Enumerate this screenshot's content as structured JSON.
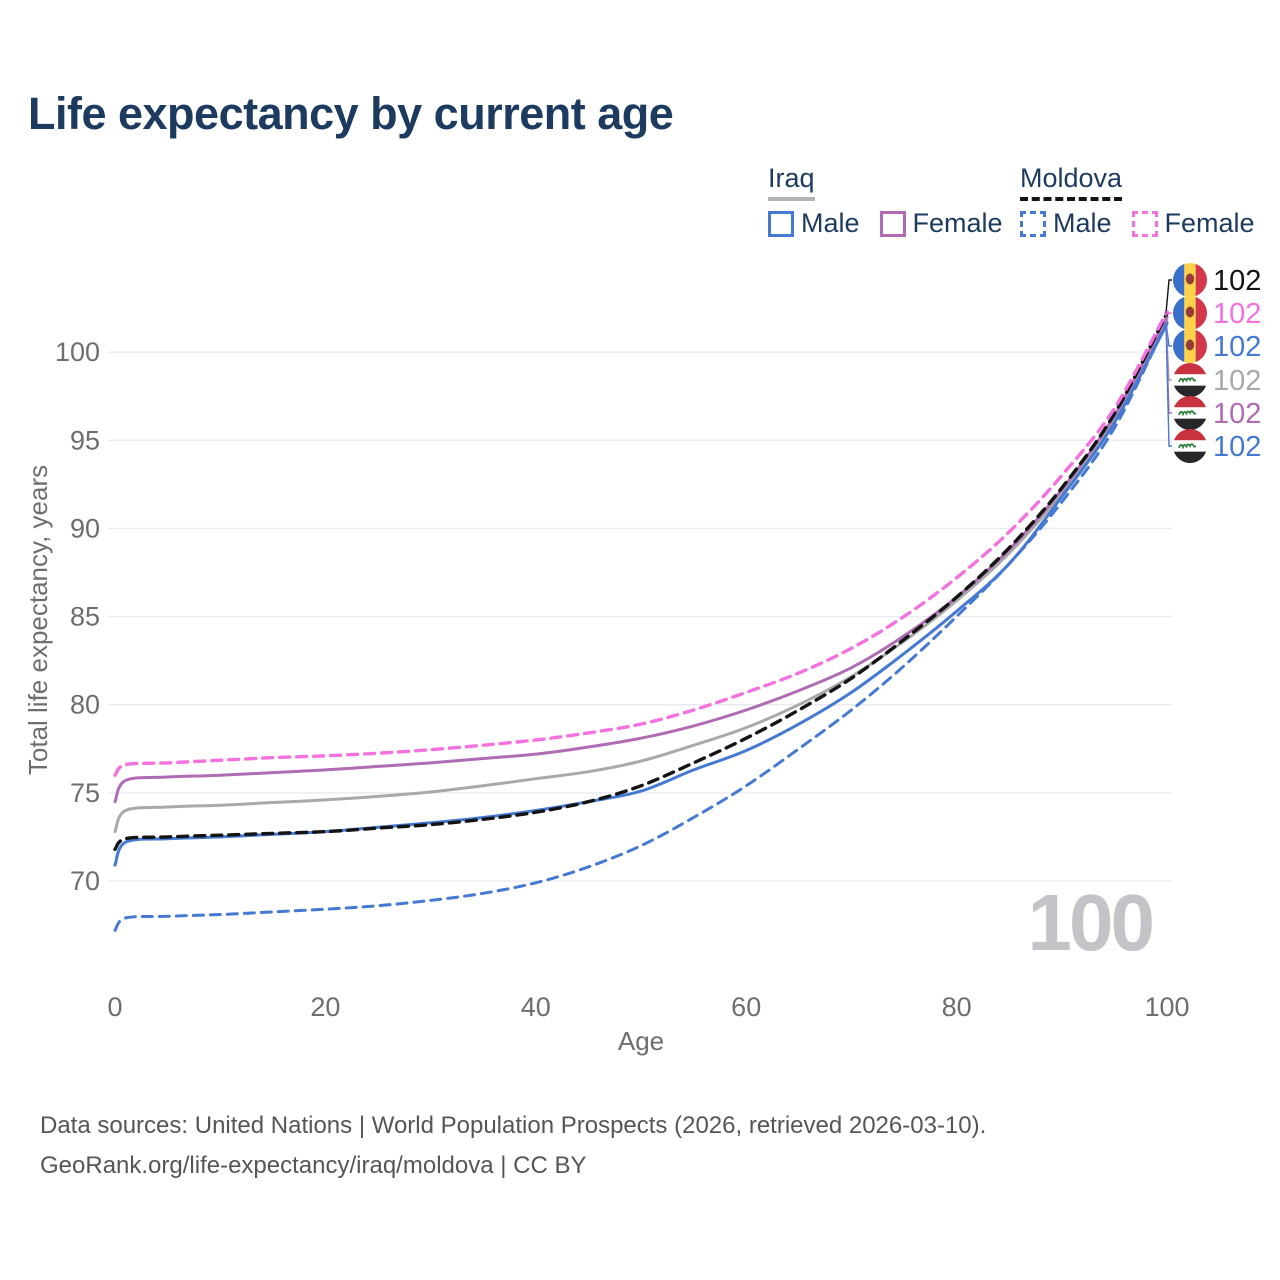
{
  "title": "Life expectancy by current age",
  "watermark": "100",
  "legend": {
    "groups": [
      {
        "label": "Iraq",
        "line_style": "solid",
        "items": [
          {
            "label": "Male",
            "color": "#4579d2",
            "dash": false
          },
          {
            "label": "Female",
            "color": "#b06cb3",
            "dash": false
          }
        ]
      },
      {
        "label": "Moldova",
        "line_style": "dashed",
        "items": [
          {
            "label": "Male",
            "color": "#4579d2",
            "dash": true
          },
          {
            "label": "Female",
            "color": "#f472e0",
            "dash": true
          }
        ]
      }
    ]
  },
  "footer": {
    "line1": "Data sources: United Nations | World Population Prospects (2026, retrieved 2026-03-10).",
    "line2": "GeoRank.org/life-expectancy/iraq/moldova | CC BY"
  },
  "chart_data": {
    "type": "line",
    "title": "Life expectancy by current age",
    "xlabel": "Age",
    "ylabel": "Total life expectancy, years",
    "xlim": [
      0,
      100
    ],
    "ylim": [
      65,
      103
    ],
    "xticks": [
      0,
      20,
      40,
      60,
      80,
      100
    ],
    "yticks": [
      70,
      75,
      80,
      85,
      90,
      95,
      100
    ],
    "grid": "horizontal-only",
    "legend_position": "top-right",
    "x": [
      0,
      1,
      5,
      10,
      15,
      20,
      25,
      30,
      35,
      40,
      45,
      50,
      55,
      60,
      65,
      70,
      75,
      80,
      85,
      90,
      95,
      100
    ],
    "series": [
      {
        "id": "iraq_total",
        "country": "Iraq",
        "sex": "Total",
        "color": "#a9a9a9",
        "dash": false,
        "width": 3,
        "values": [
          72.8,
          74.0,
          74.2,
          74.3,
          74.45,
          74.6,
          74.8,
          75.05,
          75.4,
          75.8,
          76.2,
          76.8,
          77.7,
          78.7,
          80.0,
          81.6,
          83.6,
          85.9,
          88.6,
          92.0,
          96.2,
          101.9
        ]
      },
      {
        "id": "iraq_female",
        "country": "Iraq",
        "sex": "Female",
        "color": "#b06cb3",
        "dash": false,
        "width": 3,
        "values": [
          74.5,
          75.7,
          75.9,
          76.0,
          76.15,
          76.3,
          76.5,
          76.7,
          76.95,
          77.2,
          77.6,
          78.1,
          78.8,
          79.7,
          80.8,
          82.1,
          83.9,
          86.1,
          88.8,
          92.2,
          96.4,
          102.0
        ]
      },
      {
        "id": "iraq_male",
        "country": "Iraq",
        "sex": "Male",
        "color": "#4579d2",
        "dash": false,
        "width": 3,
        "values": [
          70.9,
          72.2,
          72.4,
          72.5,
          72.65,
          72.8,
          73.05,
          73.3,
          73.6,
          74.0,
          74.5,
          75.1,
          76.3,
          77.4,
          78.9,
          80.7,
          82.9,
          85.3,
          88.0,
          91.8,
          96.0,
          101.6
        ]
      },
      {
        "id": "moldova_total",
        "country": "Moldova",
        "sex": "Total",
        "color": "#141414",
        "dash": true,
        "width": 3.4,
        "values": [
          71.8,
          72.4,
          72.5,
          72.6,
          72.7,
          72.8,
          73.0,
          73.2,
          73.5,
          73.9,
          74.5,
          75.4,
          76.7,
          78.1,
          79.7,
          81.5,
          83.7,
          86.1,
          88.9,
          92.3,
          96.5,
          102.2
        ]
      },
      {
        "id": "moldova_female",
        "country": "Moldova",
        "sex": "Female",
        "color": "#f472e0",
        "dash": true,
        "width": 3.4,
        "values": [
          76.0,
          76.6,
          76.7,
          76.85,
          77.0,
          77.1,
          77.25,
          77.45,
          77.7,
          78.0,
          78.4,
          78.9,
          79.7,
          80.7,
          81.8,
          83.2,
          85.0,
          87.2,
          89.8,
          93.0,
          96.8,
          102.3
        ]
      },
      {
        "id": "moldova_male",
        "country": "Moldova",
        "sex": "Male",
        "color": "#4579d2",
        "dash": true,
        "width": 3,
        "values": [
          67.2,
          67.9,
          68.0,
          68.1,
          68.25,
          68.4,
          68.6,
          68.9,
          69.3,
          69.9,
          70.8,
          72.0,
          73.6,
          75.4,
          77.5,
          79.7,
          82.2,
          85.0,
          88.0,
          91.5,
          95.7,
          101.7
        ]
      }
    ],
    "end_labels": [
      {
        "series": "moldova_total",
        "flag": "moldova",
        "value": "102",
        "color": "#141414"
      },
      {
        "series": "moldova_female",
        "flag": "moldova",
        "value": "102",
        "color": "#f472e0"
      },
      {
        "series": "moldova_male",
        "flag": "moldova",
        "value": "102",
        "color": "#4579d2"
      },
      {
        "series": "iraq_total",
        "flag": "iraq",
        "value": "102",
        "color": "#a9a9a9"
      },
      {
        "series": "iraq_female",
        "flag": "iraq",
        "value": "102",
        "color": "#b06cb3"
      },
      {
        "series": "iraq_male",
        "flag": "iraq",
        "value": "102",
        "color": "#4579d2"
      }
    ],
    "colors": {
      "grid": "#e9e9f1",
      "axis_text": "#6e6e6e",
      "title_text": "#1d3a5f",
      "watermark": "#c4c4c8",
      "moldova_flag": {
        "blue": "#3a70c9",
        "yellow": "#ffd24a",
        "red": "#d2374a",
        "emblem": "#8e4034"
      },
      "iraq_flag": {
        "red": "#c8323e",
        "white": "#ffffff",
        "black": "#26262b",
        "green": "#2f7d3c"
      }
    }
  }
}
